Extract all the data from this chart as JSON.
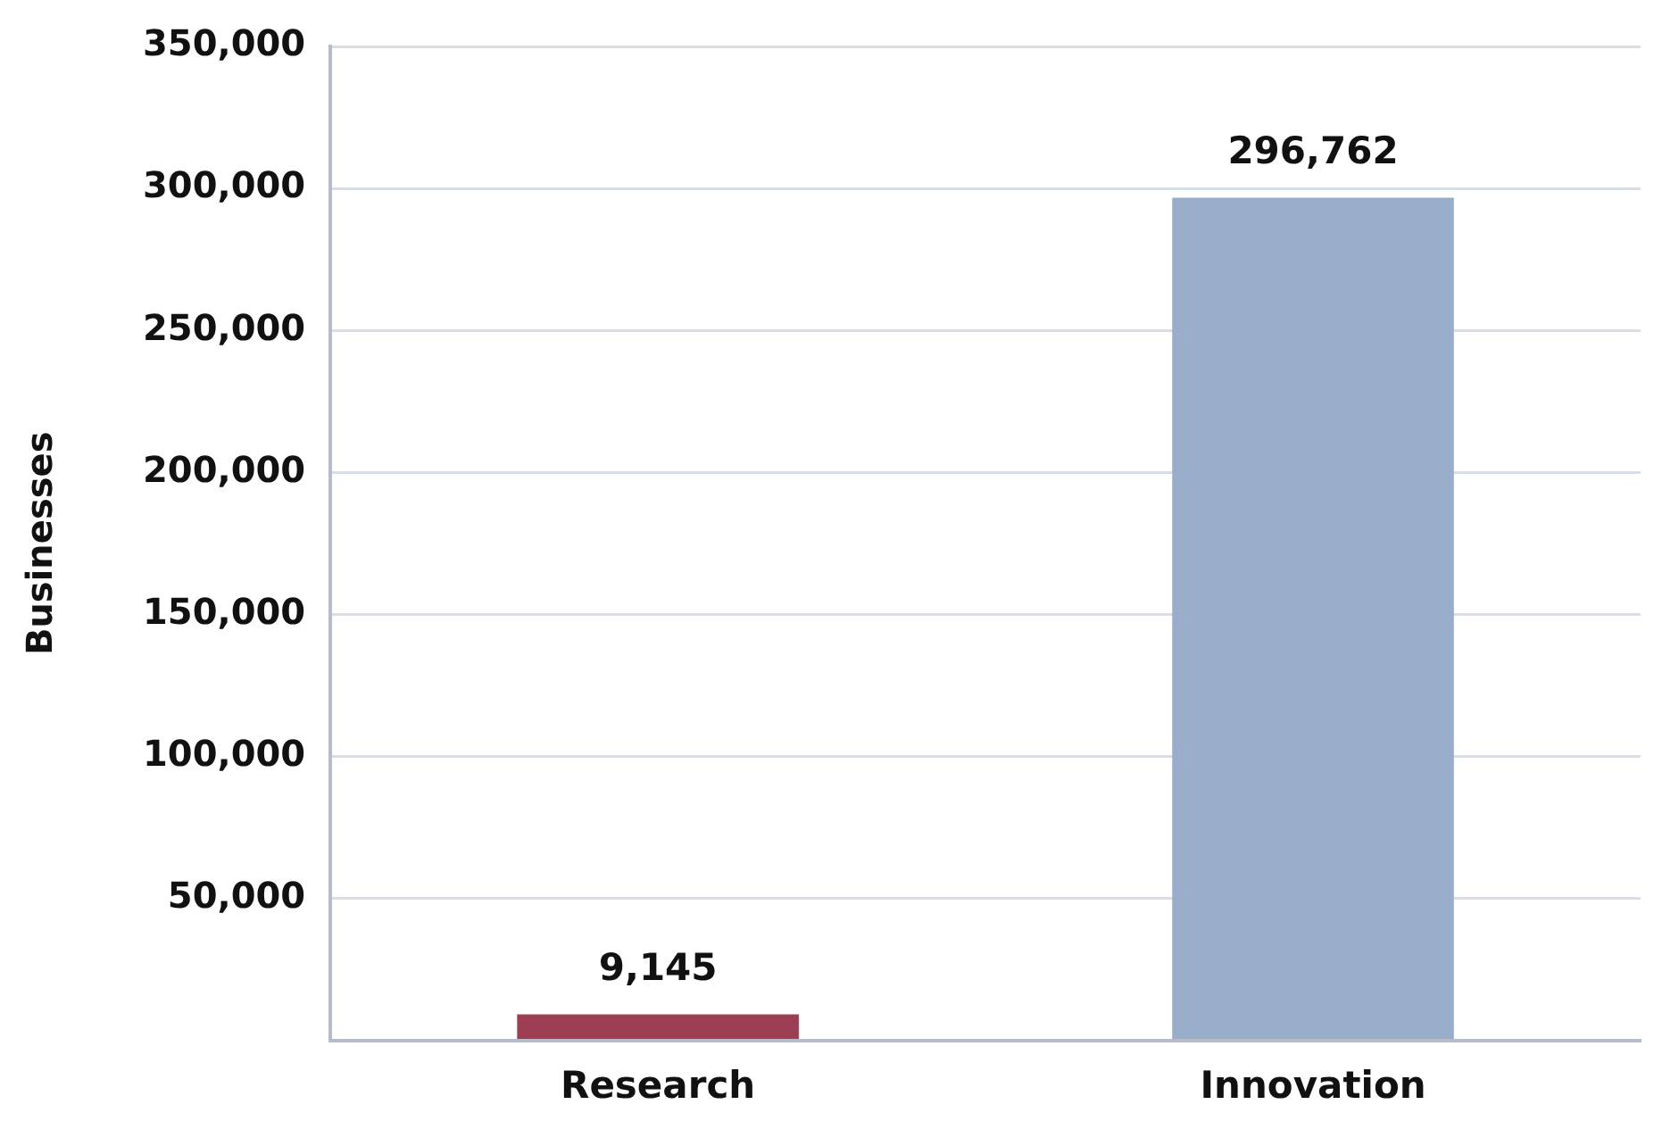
{
  "chart_data": {
    "type": "bar",
    "ylabel": "Businesses",
    "categories": [
      "Research",
      "Innovation"
    ],
    "values": [
      9145,
      296762
    ],
    "value_labels": [
      "9,145",
      "296,762"
    ],
    "colors": [
      "#9e3e52",
      "#98adc9"
    ],
    "ylim": [
      0,
      350000
    ],
    "yticks": [
      {
        "value": 0,
        "label": null
      },
      {
        "value": 50000,
        "label": "50,000"
      },
      {
        "value": 100000,
        "label": "100,000"
      },
      {
        "value": 150000,
        "label": "150,000"
      },
      {
        "value": 200000,
        "label": "200,000"
      },
      {
        "value": 250000,
        "label": "250,000"
      },
      {
        "value": 300000,
        "label": "300,000"
      },
      {
        "value": 350000,
        "label": "350,000"
      }
    ],
    "grid": "y",
    "legend": false
  }
}
